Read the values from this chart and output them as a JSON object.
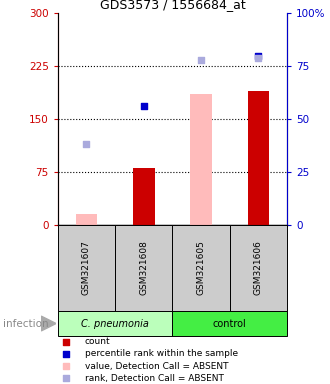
{
  "title": "GDS3573 / 1556684_at",
  "samples": [
    "GSM321607",
    "GSM321608",
    "GSM321605",
    "GSM321606"
  ],
  "x_positions": [
    0,
    1,
    2,
    3
  ],
  "bar_values": [
    15,
    80,
    185,
    190
  ],
  "bar_absent": [
    true,
    false,
    true,
    false
  ],
  "dot_percentile": [
    null,
    56,
    null,
    80
  ],
  "dot_percentile_absent": [
    false,
    false,
    false,
    false
  ],
  "rank_absent_percentile": [
    38,
    null,
    78,
    79
  ],
  "ylim_left": [
    0,
    300
  ],
  "ylim_right": [
    0,
    100
  ],
  "yticks_left": [
    0,
    75,
    150,
    225,
    300
  ],
  "ytick_labels_left": [
    "0",
    "75",
    "150",
    "225",
    "300"
  ],
  "yticks_right": [
    0,
    25,
    50,
    75,
    100
  ],
  "ytick_labels_right": [
    "0",
    "25",
    "50",
    "75",
    "100%"
  ],
  "left_axis_color": "#cc0000",
  "right_axis_color": "#0000cc",
  "cpneumonia_color": "#bbffbb",
  "control_color": "#44ee44",
  "infection_label": "infection",
  "legend_colors": [
    "#cc0000",
    "#0000cc",
    "#ffbbbb",
    "#aaaadd"
  ],
  "legend_labels": [
    "count",
    "percentile rank within the sample",
    "value, Detection Call = ABSENT",
    "rank, Detection Call = ABSENT"
  ]
}
